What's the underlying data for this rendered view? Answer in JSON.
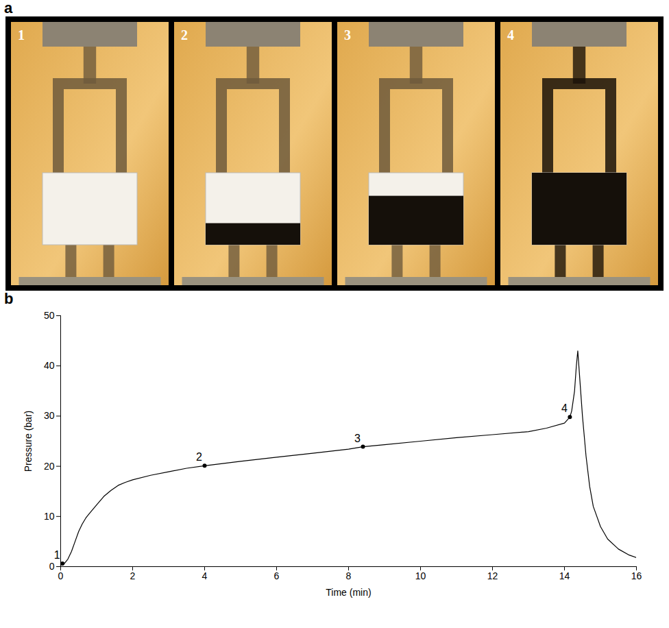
{
  "photo_panel": {
    "panel": "a",
    "frames": [
      "1",
      "2",
      "3",
      "4"
    ]
  },
  "chart_data": {
    "type": "line",
    "panel": "b",
    "x_label": "Time (min)",
    "y_label": "Pressure (bar)",
    "xlim": [
      0,
      16
    ],
    "xticks": [
      0,
      2,
      4,
      6,
      8,
      10,
      12,
      14,
      16
    ],
    "ylim": [
      0,
      50
    ],
    "yticks": [
      0,
      10,
      20,
      30,
      40,
      50
    ],
    "grid": false,
    "color": "#000000",
    "x": [
      0,
      0.1,
      0.2,
      0.3,
      0.4,
      0.5,
      0.6,
      0.7,
      0.8,
      1.0,
      1.2,
      1.4,
      1.6,
      1.8,
      2,
      2.5,
      3,
      3.5,
      4,
      5,
      6,
      7,
      8,
      8.4,
      9,
      10,
      11,
      12,
      13,
      13.5,
      14,
      14.15,
      14.2,
      14.28,
      14.33,
      14.37,
      14.42,
      14.5,
      14.6,
      14.7,
      14.8,
      15,
      15.2,
      15.5,
      15.8,
      16
    ],
    "values": [
      0.3,
      0.6,
      1.5,
      3,
      5,
      7,
      8.5,
      9.7,
      10.6,
      12.3,
      14,
      15.2,
      16.2,
      16.8,
      17.3,
      18.2,
      18.9,
      19.6,
      20.1,
      21,
      21.8,
      22.6,
      23.4,
      23.9,
      24.3,
      25,
      25.7,
      26.3,
      26.9,
      27.6,
      28.6,
      29.8,
      31,
      35,
      40,
      43,
      38,
      30,
      22,
      16,
      12,
      8,
      5.5,
      3.5,
      2.3,
      1.8
    ],
    "annotations": [
      {
        "text": "1",
        "x": 0.05,
        "y": 0.6
      },
      {
        "text": "2",
        "x": 4,
        "y": 20.1
      },
      {
        "text": "3",
        "x": 8.4,
        "y": 23.9
      },
      {
        "text": "4",
        "x": 14.15,
        "y": 29.8
      }
    ]
  }
}
